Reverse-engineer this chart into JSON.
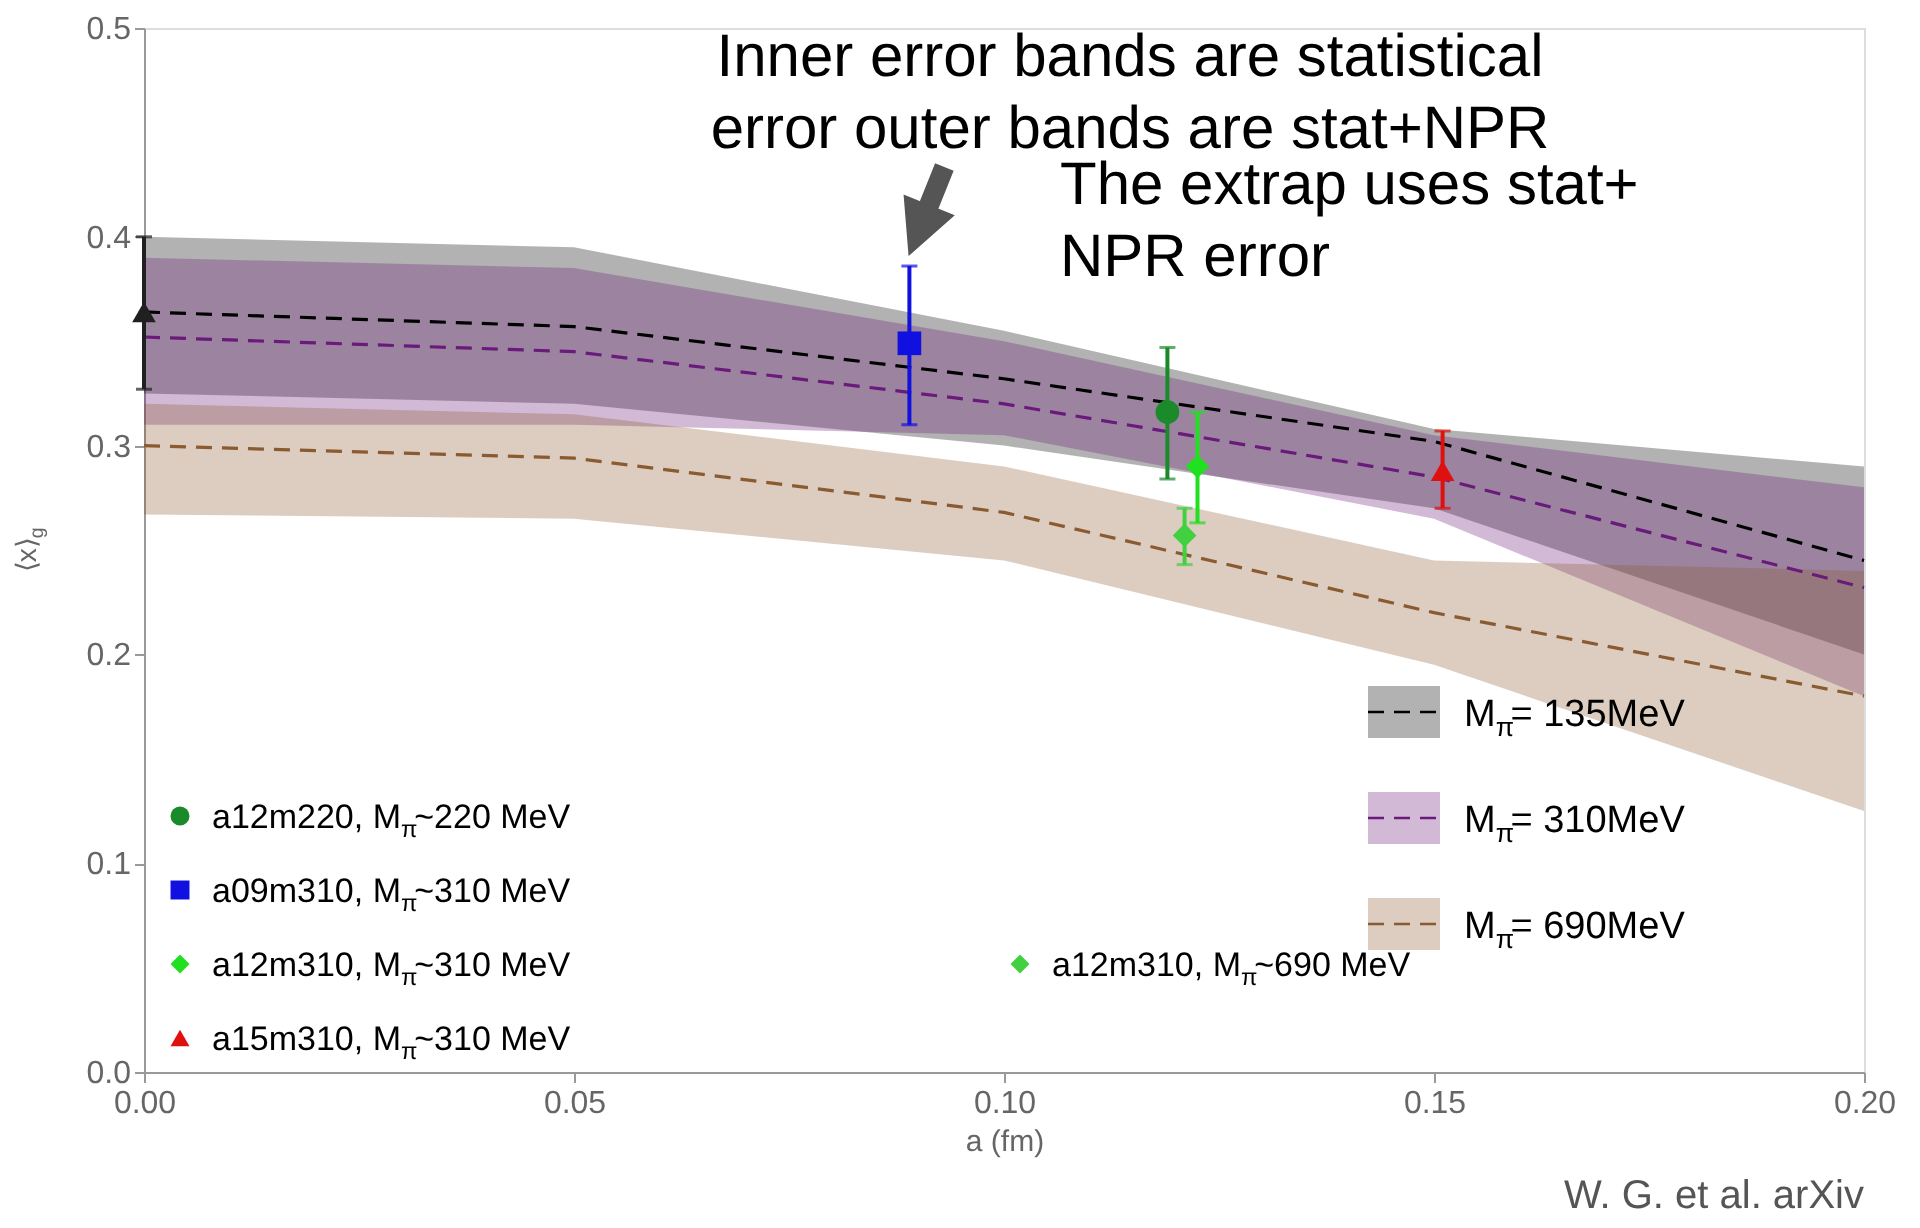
{
  "chart_data": {
    "type": "line",
    "xlabel": "a (fm)",
    "ylabel": "⟨x⟩$_{g}$",
    "xlim": [
      0,
      0.2
    ],
    "xticks": [
      {
        "value": 0,
        "label": "0.00"
      },
      0.05,
      {
        "value": 0.1,
        "label": "0.10"
      },
      0.15,
      {
        "value": 0.2,
        "label": "0.20"
      }
    ],
    "ylim": [
      0,
      0.5
    ],
    "yticks": [
      {
        "value": 0,
        "label": "0.0"
      },
      0.1,
      0.2,
      0.3,
      0.4,
      0.5
    ],
    "grid": false,
    "legend": "bottom left",
    "line_style": "dashed",
    "annotations": [
      {
        "text": "Inner error bands are statistical\nerror outer bands are stat+NPR",
        "x": 0.089,
        "y": 0.386
      },
      "The extrap uses stat+\nNPR error",
      "W. G. et al. arXiv"
    ],
    "series": [
      {
        "name": "M$_{π}$= 135MeV",
        "color": "#000000",
        "x": [
          0,
          0.05,
          0.1,
          0.15,
          0.2
        ],
        "values": [
          0.364,
          0.357,
          0.332,
          0.302,
          0.245
        ],
        "lower": [
          0.325,
          0.32,
          0.3,
          0.27,
          0.2
        ],
        "upper": [
          0.4,
          0.395,
          0.355,
          0.308,
          0.29
        ]
      },
      {
        "name": "M$_{π}$= 310MeV",
        "color": "#6a1a7a",
        "x": [
          0,
          0.05,
          0.1,
          0.15,
          0.2
        ],
        "values": [
          0.352,
          0.345,
          0.32,
          0.285,
          0.232
        ],
        "lower": [
          0.31,
          0.31,
          0.305,
          0.265,
          0.18
        ],
        "upper": [
          0.39,
          0.385,
          0.35,
          0.305,
          0.28
        ]
      },
      {
        "name": "M$_{π}$= 690MeV",
        "color": "#8a5a30",
        "x": [
          0,
          0.05,
          0.1,
          0.15,
          0.2
        ],
        "values": [
          0.3,
          0.294,
          0.268,
          0.22,
          0.18
        ],
        "lower": [
          0.267,
          0.265,
          0.245,
          0.195,
          0.125
        ],
        "upper": [
          0.32,
          0.315,
          0.29,
          0.245,
          0.24
        ]
      },
      {
        "name": "a12m220, M$_{π}$~220 MeV",
        "type": "scatter",
        "marker": "circle",
        "color": "#1a8a2a",
        "x": [
          0.119
        ],
        "values": [
          0.316
        ],
        "errors": [
          [
            0.284,
            0.347
          ]
        ]
      },
      {
        "name": "a09m310, M$_{π}$~310 MeV",
        "type": "scatter",
        "marker": "square",
        "color": "#1010e0",
        "x": [
          0.089
        ],
        "values": [
          0.349
        ],
        "errors": [
          [
            0.31,
            0.386
          ]
        ]
      },
      {
        "name": "a12m310, M$_{π}$~310 MeV",
        "type": "scatter",
        "marker": "diamond",
        "color": "#20e020",
        "x": [
          0.1225
        ],
        "values": [
          0.29
        ],
        "errors": [
          [
            0.263,
            0.316
          ]
        ]
      },
      {
        "name": "a15m310, M$_{π}$~310 MeV",
        "type": "scatter",
        "marker": "triangle",
        "color": "#e01010",
        "x": [
          0.151
        ],
        "values": [
          0.288
        ],
        "errors": [
          [
            0.27,
            0.307
          ]
        ]
      },
      {
        "name": "a12m310, M$_{π}$~690 MeV",
        "type": "scatter",
        "marker": "diamond",
        "color": "#40d040",
        "x": [
          0.121
        ],
        "values": [
          0.257
        ],
        "errors": [
          [
            0.243,
            0.27
          ]
        ]
      },
      {
        "type": "scatter",
        "marker": "triangle",
        "color": "#202020",
        "x": [
          0
        ],
        "values": [
          0.364
        ],
        "errors": [
          [
            0.327,
            0.4
          ]
        ]
      }
    ]
  }
}
